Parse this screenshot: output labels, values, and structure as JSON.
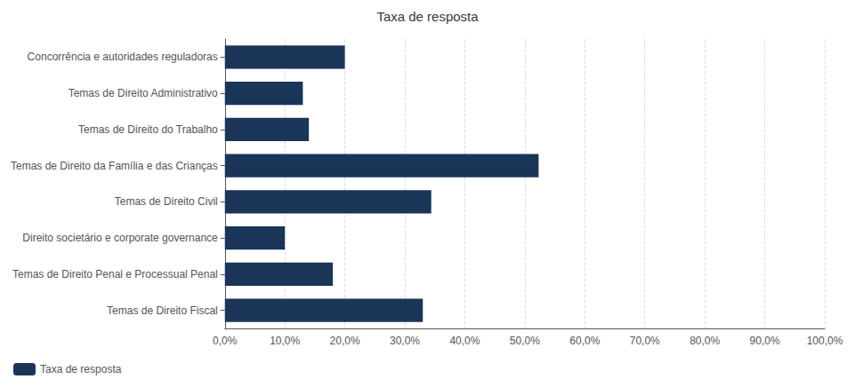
{
  "chart_data": {
    "type": "bar",
    "orientation": "horizontal",
    "title": "Taxa de resposta",
    "categories": [
      "Concorrência e autoridades reguladoras",
      "Temas de Direito Administrativo",
      "Temas de Direito do Trabalho",
      "Temas de Direito da Família e das Crianças",
      "Temas de Direito Civil",
      "Direito societário e corporate governance",
      "Temas de Direito Penal e Processual Penal",
      "Temas de Direito Fiscal"
    ],
    "series": [
      {
        "name": "Taxa de resposta",
        "color": "#1B3558",
        "values": [
          0.2,
          0.13,
          0.14,
          0.523,
          0.344,
          0.1,
          0.18,
          0.33
        ]
      }
    ],
    "xlim": [
      0,
      1.0
    ],
    "xticks": [
      {
        "value": 0.0,
        "label": "0,0%"
      },
      {
        "value": 0.1,
        "label": "10,0%"
      },
      {
        "value": 0.2,
        "label": "20,0%"
      },
      {
        "value": 0.3,
        "label": "30,0%"
      },
      {
        "value": 0.4,
        "label": "40,0%"
      },
      {
        "value": 0.5,
        "label": "50,0%"
      },
      {
        "value": 0.6,
        "label": "60,0%"
      },
      {
        "value": 0.7,
        "label": "70,0%"
      },
      {
        "value": 0.8,
        "label": "80,0%"
      },
      {
        "value": 0.9,
        "label": "90,0%"
      },
      {
        "value": 1.0,
        "label": "100,0%"
      }
    ],
    "grid": true,
    "legend": "lower left"
  }
}
